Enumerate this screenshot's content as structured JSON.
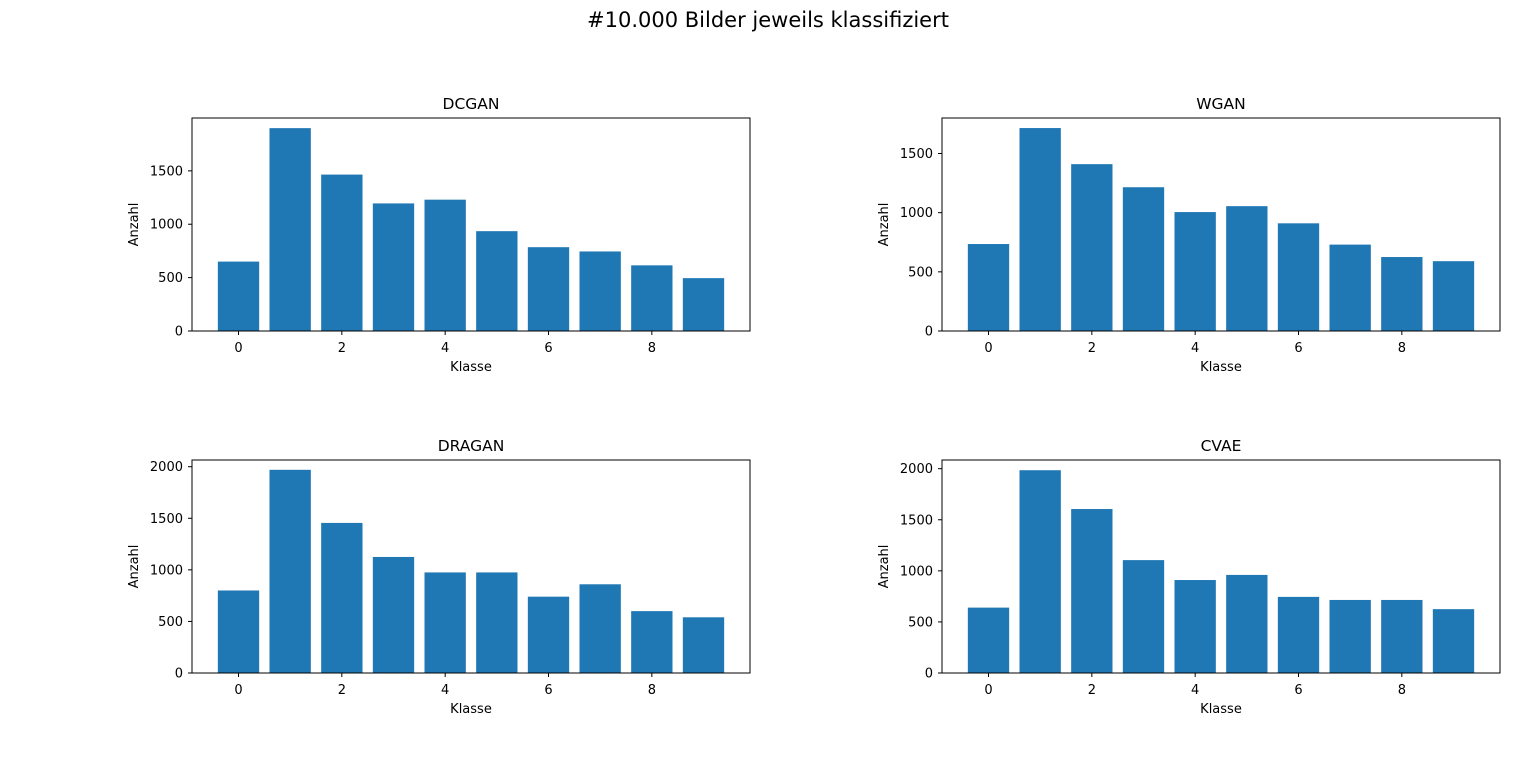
{
  "figure": {
    "suptitle": "#10.000 Bilder jeweils klassifiziert",
    "bar_color": "#1f77b4"
  },
  "chart_data": [
    {
      "type": "bar",
      "title": "DCGAN",
      "xlabel": "Klasse",
      "ylabel": "Anzahl",
      "x": [
        0,
        1,
        2,
        3,
        4,
        5,
        6,
        7,
        8,
        9
      ],
      "values": [
        650,
        1900,
        1465,
        1195,
        1230,
        935,
        785,
        745,
        615,
        495
      ],
      "xticks": [
        0,
        2,
        4,
        6,
        8
      ],
      "yticks": [
        0,
        500,
        1000,
        1500
      ],
      "ylim": [
        0,
        1995
      ],
      "xlim": [
        -0.9,
        9.9
      ],
      "grid": false,
      "color": "#1f77b4"
    },
    {
      "type": "bar",
      "title": "WGAN",
      "xlabel": "Klasse",
      "ylabel": "Anzahl",
      "x": [
        0,
        1,
        2,
        3,
        4,
        5,
        6,
        7,
        8,
        9
      ],
      "values": [
        735,
        1715,
        1410,
        1215,
        1005,
        1055,
        910,
        730,
        625,
        590
      ],
      "xticks": [
        0,
        2,
        4,
        6,
        8
      ],
      "yticks": [
        0,
        500,
        1000,
        1500
      ],
      "ylim": [
        0,
        1800
      ],
      "xlim": [
        -0.9,
        9.9
      ],
      "grid": false,
      "color": "#1f77b4"
    },
    {
      "type": "bar",
      "title": "DRAGAN",
      "xlabel": "Klasse",
      "ylabel": "Anzahl",
      "x": [
        0,
        1,
        2,
        3,
        4,
        5,
        6,
        7,
        8,
        9
      ],
      "values": [
        800,
        1970,
        1455,
        1125,
        975,
        975,
        740,
        860,
        600,
        540
      ],
      "xticks": [
        0,
        2,
        4,
        6,
        8
      ],
      "yticks": [
        0,
        500,
        1000,
        1500,
        2000
      ],
      "ylim": [
        0,
        2065
      ],
      "xlim": [
        -0.9,
        9.9
      ],
      "grid": false,
      "color": "#1f77b4"
    },
    {
      "type": "bar",
      "title": "CVAE",
      "xlabel": "Klasse",
      "ylabel": "Anzahl",
      "x": [
        0,
        1,
        2,
        3,
        4,
        5,
        6,
        7,
        8,
        9
      ],
      "values": [
        640,
        1985,
        1605,
        1105,
        910,
        960,
        745,
        715,
        715,
        625
      ],
      "xticks": [
        0,
        2,
        4,
        6,
        8
      ],
      "yticks": [
        0,
        500,
        1000,
        1500,
        2000
      ],
      "ylim": [
        0,
        2085
      ],
      "xlim": [
        -0.9,
        9.9
      ],
      "grid": false,
      "color": "#1f77b4"
    }
  ]
}
